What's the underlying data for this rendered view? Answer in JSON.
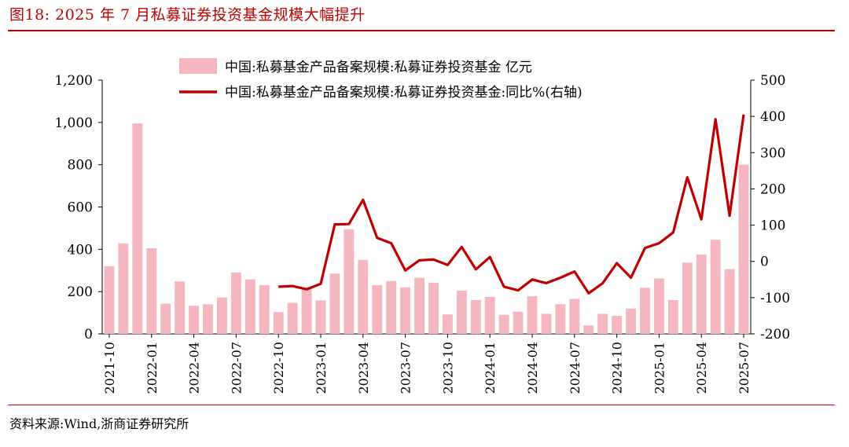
{
  "figure": {
    "title": "图18:   2025 年 7 月私募证券投资基金规模大幅提升",
    "source": "资料来源:Wind,浙商证券研究所"
  },
  "colors": {
    "bar": "#f4b6bf",
    "line": "#c00000",
    "rule": "#c00000"
  },
  "chart_data": {
    "type": "bar",
    "title": "",
    "xlabel": "",
    "ylabel": "",
    "legend_position": "top-center",
    "grid": false,
    "x_tick_labels": [
      "2021-10",
      "2022-01",
      "2022-04",
      "2022-07",
      "2022-10",
      "2023-01",
      "2023-04",
      "2023-07",
      "2023-10",
      "2024-01",
      "2024-04",
      "2024-07",
      "2024-10",
      "2025-01",
      "2025-04",
      "2025-07"
    ],
    "y_left": {
      "range": [
        0,
        1200
      ],
      "ticks": [
        "0",
        "200",
        "400",
        "600",
        "800",
        "1,000",
        "1,200"
      ]
    },
    "y_right": {
      "range": [
        -200,
        500
      ],
      "ticks": [
        "-200",
        "-100",
        "0",
        "100",
        "200",
        "300",
        "400",
        "500"
      ]
    },
    "categories": [
      "2021-10",
      "2021-11",
      "2021-12",
      "2022-01",
      "2022-02",
      "2022-03",
      "2022-04",
      "2022-05",
      "2022-06",
      "2022-07",
      "2022-08",
      "2022-09",
      "2022-10",
      "2022-11",
      "2022-12",
      "2023-01",
      "2023-02",
      "2023-03",
      "2023-04",
      "2023-05",
      "2023-06",
      "2023-07",
      "2023-08",
      "2023-09",
      "2023-10",
      "2023-11",
      "2023-12",
      "2024-01",
      "2024-02",
      "2024-03",
      "2024-04",
      "2024-05",
      "2024-06",
      "2024-07",
      "2024-08",
      "2024-09",
      "2024-10",
      "2024-11",
      "2024-12",
      "2025-01",
      "2025-02",
      "2025-03",
      "2025-04",
      "2025-05",
      "2025-06",
      "2025-07"
    ],
    "series": [
      {
        "name": "中国:私募基金产品备案规模:私募证券投资基金 亿元",
        "type": "bar",
        "axis": "left",
        "values": [
          320,
          428,
          995,
          405,
          143,
          248,
          133,
          140,
          172,
          290,
          258,
          230,
          103,
          147,
          218,
          158,
          285,
          495,
          350,
          230,
          250,
          220,
          265,
          242,
          92,
          205,
          160,
          175,
          90,
          105,
          178,
          95,
          140,
          165,
          40,
          95,
          85,
          120,
          218,
          262,
          160,
          337,
          375,
          445,
          306,
          800
        ]
      },
      {
        "name": "中国:私募基金产品备案规模:私募证券投资基金:同比%(右轴)",
        "type": "line",
        "axis": "right",
        "values": [
          null,
          null,
          null,
          null,
          null,
          null,
          null,
          null,
          null,
          null,
          null,
          null,
          -70,
          -68,
          -77,
          -62,
          102,
          103,
          170,
          65,
          50,
          -25,
          3,
          5,
          -10,
          40,
          -22,
          12,
          -70,
          -80,
          -50,
          -60,
          -45,
          -28,
          -88,
          -60,
          -5,
          -45,
          37,
          50,
          80,
          232,
          116,
          392,
          126,
          405
        ]
      }
    ]
  }
}
